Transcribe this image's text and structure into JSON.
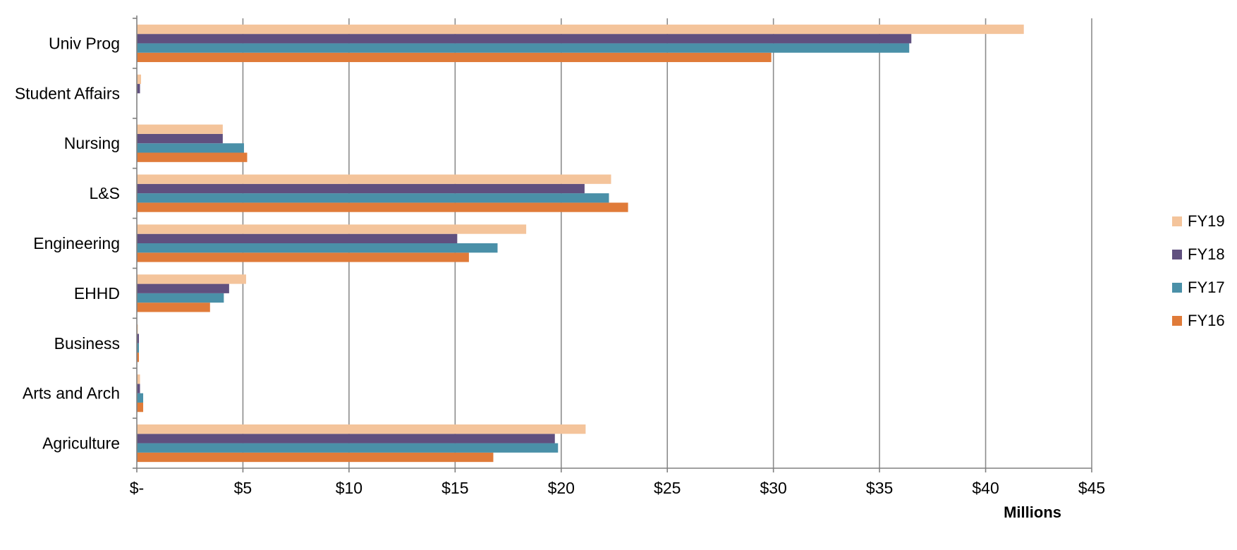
{
  "chart_data": {
    "type": "bar",
    "orientation": "horizontal",
    "categories": [
      "Agriculture",
      "Arts and Arch",
      "Business",
      "EHHD",
      "Engineering",
      "L&S",
      "Nursing",
      "Student Affairs",
      "Univ Prog"
    ],
    "series": [
      {
        "name": "FY16",
        "color": "#e07b39",
        "values": [
          16.8,
          0.3,
          0.1,
          3.45,
          15.65,
          23.15,
          5.2,
          0.0,
          29.9
        ]
      },
      {
        "name": "FY17",
        "color": "#4a90a8",
        "values": [
          19.85,
          0.3,
          0.1,
          4.1,
          17.0,
          22.25,
          5.05,
          0.0,
          36.4
        ]
      },
      {
        "name": "FY18",
        "color": "#60507f",
        "values": [
          19.7,
          0.15,
          0.1,
          4.35,
          15.1,
          21.1,
          4.05,
          0.15,
          36.5
        ]
      },
      {
        "name": "FY19",
        "color": "#f4c49b",
        "values": [
          21.15,
          0.15,
          0.05,
          5.15,
          18.35,
          22.35,
          4.05,
          0.2,
          41.8
        ]
      }
    ],
    "xlim": [
      0,
      45
    ],
    "x_ticks": [
      0,
      5,
      10,
      15,
      20,
      25,
      30,
      35,
      40,
      45
    ],
    "x_tick_labels": [
      "$-",
      "$5",
      "$10",
      "$15",
      "$20",
      "$25",
      "$30",
      "$35",
      "$40",
      "$45"
    ],
    "xlabel": "Millions",
    "ylabel": "",
    "title": "",
    "grid": "vertical",
    "legend_position": "right",
    "legend_order": [
      "FY19",
      "FY18",
      "FY17",
      "FY16"
    ]
  }
}
